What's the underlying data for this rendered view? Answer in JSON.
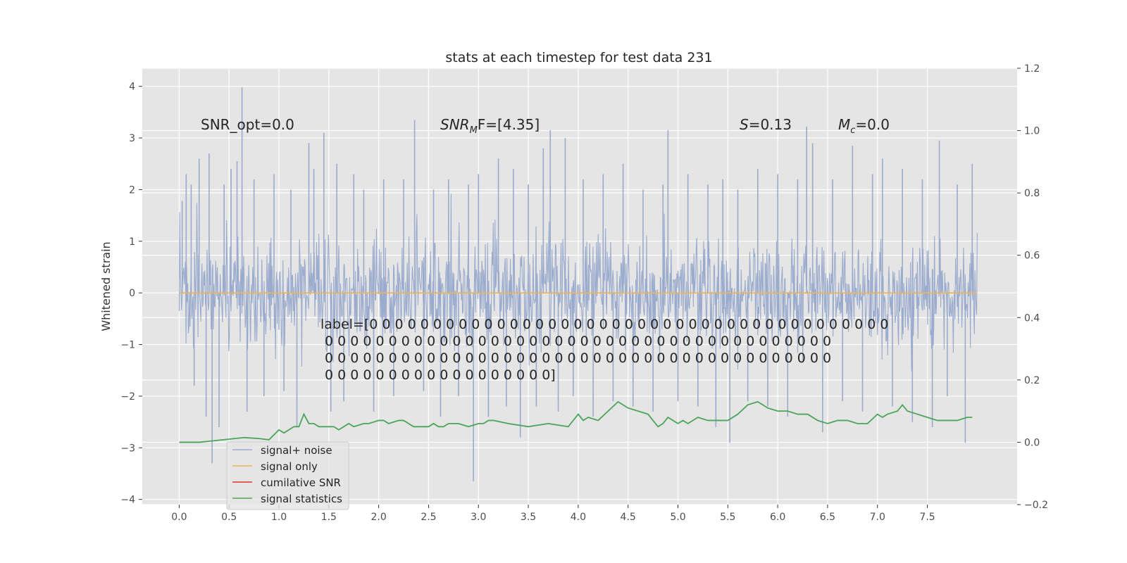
{
  "chart_data": {
    "type": "line",
    "title": "stats at each timestep for test data 231",
    "xlabel": "",
    "ylabel": "Whitened strain",
    "xlim": [
      -0.37,
      8.4
    ],
    "ylim": [
      -4.1,
      4.35
    ],
    "y2lim": [
      -0.2,
      1.2
    ],
    "xticks": [
      "0.0",
      "0.5",
      "1.0",
      "1.5",
      "2.0",
      "2.5",
      "3.0",
      "3.5",
      "4.0",
      "4.5",
      "5.0",
      "5.5",
      "6.0",
      "6.5",
      "7.0",
      "7.5"
    ],
    "yticks": [
      "4",
      "3",
      "2",
      "1",
      "0",
      "−1",
      "−2",
      "−3",
      "−4"
    ],
    "y2ticks": [
      "1.2",
      "1.0",
      "0.8",
      "0.6",
      "0.4",
      "0.2",
      "0.0",
      "−0.2"
    ],
    "grid": true,
    "legend_placement": "lower left",
    "annotations": {
      "snr_opt": "SNR_opt=0.0",
      "snr_mf_base": "SNR",
      "snr_mf_sub": "M",
      "snr_mf_rest": "F=[4.35]",
      "s_stat_var": "S",
      "s_stat_rest": "=0.13",
      "mc_base": "M",
      "mc_sub": "c",
      "mc_rest": "=0.0",
      "label_lines": [
        "label=[0 0 0 0 0 0 0 0 0 0 0 0 0 0 0 0 0 0 0 0 0 0 0 0 0 0 0 0 0 0 0 0 0 0 0 0 0 0 0 0 0",
        " 0 0 0 0 0 0 0 0 0 0 0 0 0 0 0 0 0 0 0 0 0 0 0 0 0 0 0 0 0 0 0 0 0 0 0 0 0 0 0 0",
        " 0 0 0 0 0 0 0 0 0 0 0 0 0 0 0 0 0 0 0 0 0 0 0 0 0 0 0 0 0 0 0 0 0 0 0 0 0 0 0 0",
        " 0 0 0 0 0 0 0 0 0 0 0 0 0 0 0 0 0 0]"
      ]
    },
    "series": [
      {
        "name": "signal+ noise",
        "color": "#9aabcd",
        "axis": "left",
        "x_range": [
          0.0,
          8.0
        ],
        "spikes": [
          {
            "x": 0.03,
            "y": 1.78
          },
          {
            "x": 0.07,
            "y": 2.3
          },
          {
            "x": 0.12,
            "y": 2.1
          },
          {
            "x": 0.15,
            "y": -1.8
          },
          {
            "x": 0.2,
            "y": 2.6
          },
          {
            "x": 0.27,
            "y": -2.4
          },
          {
            "x": 0.3,
            "y": 2.7
          },
          {
            "x": 0.33,
            "y": -3.3
          },
          {
            "x": 0.4,
            "y": -2.6
          },
          {
            "x": 0.45,
            "y": 2.1
          },
          {
            "x": 0.52,
            "y": 2.4
          },
          {
            "x": 0.58,
            "y": 2.55
          },
          {
            "x": 0.63,
            "y": 3.98
          },
          {
            "x": 0.68,
            "y": -2.3
          },
          {
            "x": 0.75,
            "y": 2.2
          },
          {
            "x": 0.85,
            "y": -2.0
          },
          {
            "x": 0.95,
            "y": 2.3
          },
          {
            "x": 1.05,
            "y": -1.9
          },
          {
            "x": 1.12,
            "y": 2.0
          },
          {
            "x": 1.18,
            "y": -2.6
          },
          {
            "x": 1.3,
            "y": 2.9
          },
          {
            "x": 1.35,
            "y": 2.4
          },
          {
            "x": 1.45,
            "y": 3.1
          },
          {
            "x": 1.52,
            "y": -2.3
          },
          {
            "x": 1.58,
            "y": 2.5
          },
          {
            "x": 1.65,
            "y": -2.1
          },
          {
            "x": 1.75,
            "y": 2.3
          },
          {
            "x": 1.85,
            "y": 2.0
          },
          {
            "x": 1.95,
            "y": -2.3
          },
          {
            "x": 2.05,
            "y": 2.2
          },
          {
            "x": 2.15,
            "y": -2.0
          },
          {
            "x": 2.25,
            "y": 2.2
          },
          {
            "x": 2.36,
            "y": 3.35
          },
          {
            "x": 2.45,
            "y": -1.9
          },
          {
            "x": 2.55,
            "y": 2.0
          },
          {
            "x": 2.62,
            "y": -2.4
          },
          {
            "x": 2.7,
            "y": 2.2
          },
          {
            "x": 2.8,
            "y": -2.0
          },
          {
            "x": 2.9,
            "y": 2.1
          },
          {
            "x": 2.95,
            "y": -3.65
          },
          {
            "x": 3.0,
            "y": 2.3
          },
          {
            "x": 3.1,
            "y": -2.4
          },
          {
            "x": 3.2,
            "y": 2.6
          },
          {
            "x": 3.28,
            "y": -2.2
          },
          {
            "x": 3.35,
            "y": 2.4
          },
          {
            "x": 3.42,
            "y": -2.8
          },
          {
            "x": 3.5,
            "y": 2.1
          },
          {
            "x": 3.58,
            "y": -2.2
          },
          {
            "x": 3.65,
            "y": 2.8
          },
          {
            "x": 3.72,
            "y": 3.15
          },
          {
            "x": 3.8,
            "y": -2.3
          },
          {
            "x": 3.87,
            "y": 3.0
          },
          {
            "x": 3.95,
            "y": -2.0
          },
          {
            "x": 4.05,
            "y": 2.2
          },
          {
            "x": 4.15,
            "y": -2.4
          },
          {
            "x": 4.25,
            "y": 2.3
          },
          {
            "x": 4.35,
            "y": -2.1
          },
          {
            "x": 4.45,
            "y": 2.5
          },
          {
            "x": 4.55,
            "y": -2.2
          },
          {
            "x": 4.65,
            "y": 2.0
          },
          {
            "x": 4.75,
            "y": -2.3
          },
          {
            "x": 4.85,
            "y": 2.1
          },
          {
            "x": 4.9,
            "y": 3.15
          },
          {
            "x": 5.0,
            "y": -2.1
          },
          {
            "x": 5.1,
            "y": 2.3
          },
          {
            "x": 5.2,
            "y": -2.2
          },
          {
            "x": 5.3,
            "y": 2.1
          },
          {
            "x": 5.38,
            "y": -2.6
          },
          {
            "x": 5.45,
            "y": 2.2
          },
          {
            "x": 5.52,
            "y": -2.9
          },
          {
            "x": 5.6,
            "y": 2.0
          },
          {
            "x": 5.7,
            "y": -2.1
          },
          {
            "x": 5.8,
            "y": 2.4
          },
          {
            "x": 5.9,
            "y": -2.2
          },
          {
            "x": 6.0,
            "y": 2.3
          },
          {
            "x": 6.1,
            "y": -2.4
          },
          {
            "x": 6.2,
            "y": 2.2
          },
          {
            "x": 6.29,
            "y": 3.22
          },
          {
            "x": 6.35,
            "y": 2.9
          },
          {
            "x": 6.45,
            "y": -2.7
          },
          {
            "x": 6.55,
            "y": 2.2
          },
          {
            "x": 6.65,
            "y": -2.1
          },
          {
            "x": 6.75,
            "y": 2.85
          },
          {
            "x": 6.85,
            "y": -2.3
          },
          {
            "x": 6.95,
            "y": 2.3
          },
          {
            "x": 7.05,
            "y": 2.6
          },
          {
            "x": 7.15,
            "y": -2.2
          },
          {
            "x": 7.25,
            "y": 2.4
          },
          {
            "x": 7.35,
            "y": -2.5
          },
          {
            "x": 7.45,
            "y": 2.2
          },
          {
            "x": 7.55,
            "y": -2.6
          },
          {
            "x": 7.62,
            "y": 2.95
          },
          {
            "x": 7.7,
            "y": -2.0
          },
          {
            "x": 7.8,
            "y": 2.1
          },
          {
            "x": 7.88,
            "y": -2.9
          },
          {
            "x": 7.95,
            "y": 2.5
          }
        ]
      },
      {
        "name": "signal only",
        "color": "#eeb456",
        "axis": "left",
        "x": [
          0.0,
          8.0
        ],
        "y": [
          0.0,
          0.0
        ]
      },
      {
        "name": "cumilative SNR",
        "color": "#d8382b",
        "axis": "right",
        "x": [],
        "y": []
      },
      {
        "name": "signal statistics",
        "color": "#4ba558",
        "axis": "right",
        "x": [
          0.0,
          0.2,
          0.35,
          0.5,
          0.65,
          0.8,
          0.9,
          1.0,
          1.05,
          1.1,
          1.15,
          1.2,
          1.25,
          1.3,
          1.35,
          1.4,
          1.5,
          1.55,
          1.6,
          1.7,
          1.75,
          1.85,
          1.9,
          2.0,
          2.05,
          2.1,
          2.2,
          2.25,
          2.3,
          2.35,
          2.45,
          2.5,
          2.55,
          2.6,
          2.65,
          2.7,
          2.8,
          2.9,
          3.0,
          3.05,
          3.1,
          3.15,
          3.3,
          3.5,
          3.7,
          3.9,
          4.0,
          4.05,
          4.1,
          4.2,
          4.3,
          4.4,
          4.5,
          4.6,
          4.7,
          4.75,
          4.8,
          4.85,
          4.9,
          4.95,
          5.0,
          5.05,
          5.1,
          5.2,
          5.3,
          5.4,
          5.5,
          5.6,
          5.7,
          5.8,
          5.85,
          5.9,
          6.0,
          6.1,
          6.2,
          6.3,
          6.4,
          6.5,
          6.6,
          6.7,
          6.8,
          6.9,
          7.0,
          7.05,
          7.1,
          7.2,
          7.25,
          7.3,
          7.4,
          7.5,
          7.6,
          7.7,
          7.8,
          7.9,
          7.95
        ],
        "y": [
          0.0,
          0.0,
          0.005,
          0.01,
          0.015,
          0.012,
          0.008,
          0.04,
          0.03,
          0.04,
          0.05,
          0.05,
          0.09,
          0.06,
          0.06,
          0.05,
          0.05,
          0.05,
          0.04,
          0.06,
          0.05,
          0.06,
          0.06,
          0.07,
          0.07,
          0.06,
          0.07,
          0.07,
          0.06,
          0.05,
          0.05,
          0.05,
          0.06,
          0.05,
          0.05,
          0.06,
          0.06,
          0.05,
          0.06,
          0.06,
          0.07,
          0.07,
          0.06,
          0.05,
          0.06,
          0.05,
          0.09,
          0.07,
          0.08,
          0.07,
          0.1,
          0.13,
          0.11,
          0.1,
          0.09,
          0.07,
          0.05,
          0.06,
          0.08,
          0.07,
          0.06,
          0.07,
          0.06,
          0.08,
          0.07,
          0.07,
          0.07,
          0.09,
          0.12,
          0.13,
          0.12,
          0.11,
          0.1,
          0.1,
          0.09,
          0.09,
          0.07,
          0.06,
          0.07,
          0.07,
          0.06,
          0.06,
          0.09,
          0.08,
          0.09,
          0.1,
          0.12,
          0.1,
          0.09,
          0.08,
          0.07,
          0.07,
          0.07,
          0.08,
          0.08
        ]
      }
    ]
  },
  "colors": {
    "plot_bg": "#e5e5e5",
    "grid": "#ffffff",
    "text": "#262626",
    "tick_text": "#4d4d4d"
  }
}
